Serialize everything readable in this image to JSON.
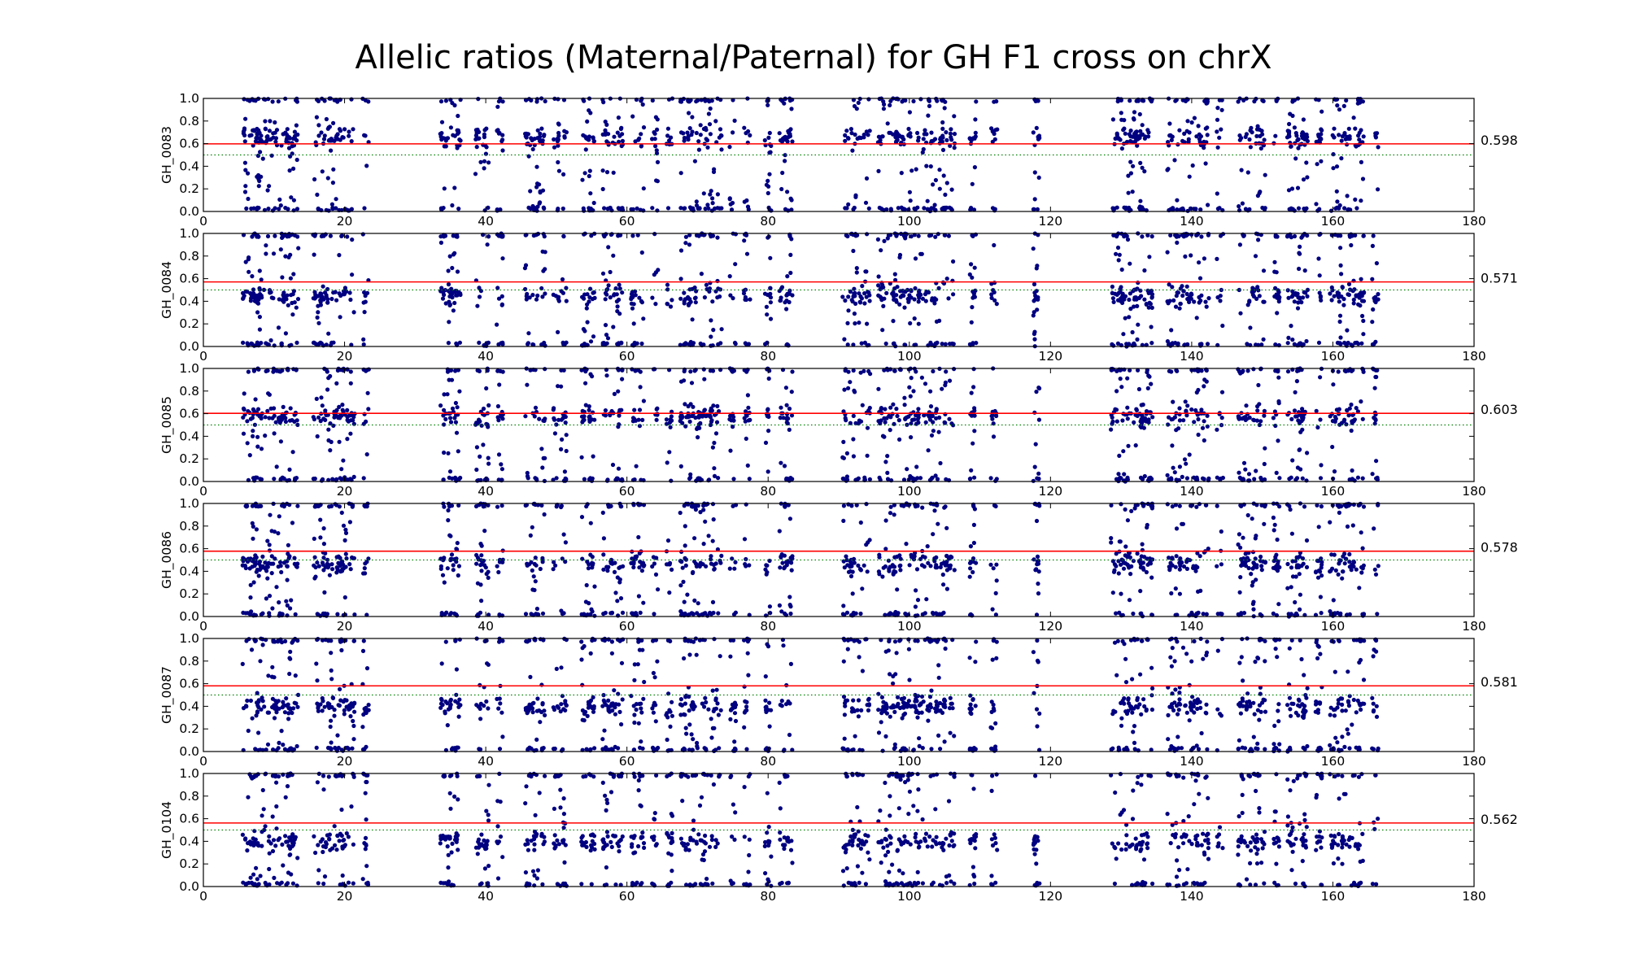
{
  "chart_data": {
    "type": "scatter",
    "title": "Allelic ratios (Maternal/Paternal) for GH F1 cross on chrX",
    "xlim": [
      0,
      180
    ],
    "ylim": [
      0,
      1
    ],
    "x_ticks": [
      "0",
      "20",
      "40",
      "60",
      "80",
      "100",
      "120",
      "140",
      "160",
      "180"
    ],
    "y_ticks": [
      "0.0",
      "0.2",
      "0.4",
      "0.6",
      "0.8",
      "1.0"
    ],
    "grid": false,
    "marker_color": "#000080",
    "mean_line_color": "#ff0000",
    "reference_line": {
      "y": 0.5,
      "style": "dotted",
      "color": "#008000"
    },
    "gene_cluster_positions": [
      6,
      7,
      7.5,
      8,
      9,
      10,
      11,
      12,
      13,
      16,
      17,
      18,
      19,
      20,
      21,
      23,
      34,
      35,
      36,
      39,
      40,
      42,
      46,
      47,
      48,
      50,
      51,
      54,
      55,
      57,
      58,
      59,
      61,
      62,
      64,
      66,
      68,
      69,
      70,
      71,
      72,
      73,
      75,
      77,
      80,
      82,
      83,
      91,
      92,
      93,
      94,
      96,
      97,
      98,
      99,
      100,
      101,
      102,
      103,
      104,
      105,
      106,
      109,
      112,
      118,
      129,
      130,
      131,
      132,
      133,
      134,
      137,
      138,
      139,
      140,
      141,
      142,
      144,
      147,
      148,
      149,
      150,
      152,
      154,
      155,
      156,
      158,
      160,
      161,
      162,
      163,
      164,
      166
    ],
    "panels": [
      {
        "sample": "GH_0083",
        "mean": 0.598,
        "mean_label": "0.598",
        "cluster": 0.66
      },
      {
        "sample": "GH_0084",
        "mean": 0.571,
        "mean_label": "0.571",
        "cluster": 0.45
      },
      {
        "sample": "GH_0085",
        "mean": 0.603,
        "mean_label": "0.603",
        "cluster": 0.58
      },
      {
        "sample": "GH_0086",
        "mean": 0.578,
        "mean_label": "0.578",
        "cluster": 0.47
      },
      {
        "sample": "GH_0087",
        "mean": 0.581,
        "mean_label": "0.581",
        "cluster": 0.4
      },
      {
        "sample": "GH_0104",
        "mean": 0.562,
        "mean_label": "0.562",
        "cluster": 0.4
      }
    ]
  }
}
